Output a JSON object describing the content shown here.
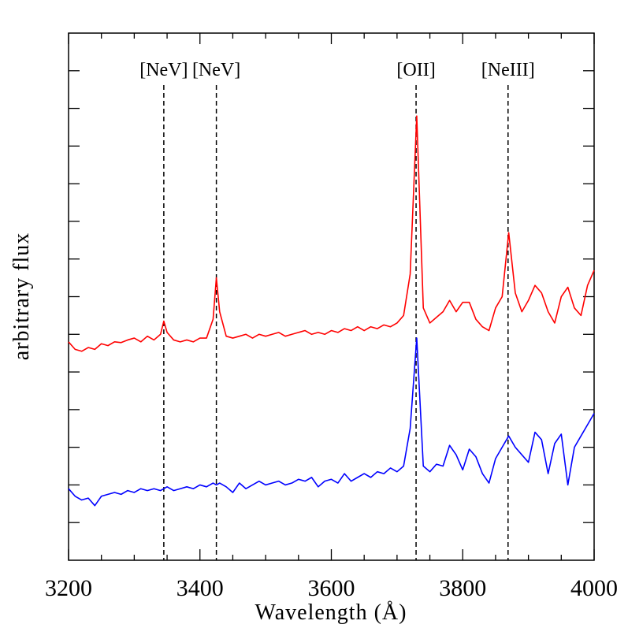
{
  "chart_data": {
    "type": "line",
    "xlabel": "Wavelength (Å)",
    "ylabel": "arbitrary flux",
    "xlim": [
      3200,
      4000
    ],
    "xticks": [
      3200,
      3400,
      3600,
      3800,
      4000
    ],
    "xminorticks": [
      3250,
      3300,
      3350,
      3450,
      3500,
      3550,
      3650,
      3700,
      3750,
      3850,
      3900,
      3950
    ],
    "ylim": [
      0,
      14
    ],
    "yticks": [
      1,
      2,
      3,
      4,
      5,
      6,
      7,
      8,
      9,
      10,
      11,
      12,
      13
    ],
    "ytick_labels": false,
    "x": [
      3200,
      3210,
      3220,
      3230,
      3240,
      3250,
      3260,
      3270,
      3280,
      3290,
      3300,
      3310,
      3320,
      3330,
      3340,
      3345,
      3350,
      3360,
      3370,
      3380,
      3390,
      3400,
      3410,
      3420,
      3425,
      3430,
      3440,
      3450,
      3460,
      3470,
      3480,
      3490,
      3500,
      3510,
      3520,
      3530,
      3540,
      3550,
      3560,
      3570,
      3580,
      3590,
      3600,
      3610,
      3620,
      3630,
      3640,
      3650,
      3660,
      3670,
      3680,
      3690,
      3700,
      3710,
      3720,
      3730,
      3740,
      3750,
      3760,
      3770,
      3780,
      3790,
      3800,
      3810,
      3820,
      3830,
      3840,
      3850,
      3860,
      3870,
      3880,
      3890,
      3900,
      3910,
      3920,
      3930,
      3940,
      3950,
      3960,
      3970,
      3980,
      3990,
      4000
    ],
    "series": [
      {
        "color": "#ff0000",
        "values": [
          5.8,
          5.6,
          5.55,
          5.65,
          5.6,
          5.75,
          5.7,
          5.8,
          5.78,
          5.85,
          5.9,
          5.8,
          5.95,
          5.85,
          6.0,
          6.35,
          6.05,
          5.85,
          5.8,
          5.85,
          5.8,
          5.9,
          5.9,
          6.4,
          7.5,
          6.6,
          5.95,
          5.9,
          5.95,
          6.0,
          5.9,
          6.0,
          5.95,
          6.0,
          6.05,
          5.95,
          6.0,
          6.05,
          6.1,
          6.0,
          6.05,
          6.0,
          6.1,
          6.05,
          6.15,
          6.1,
          6.2,
          6.1,
          6.2,
          6.15,
          6.25,
          6.2,
          6.3,
          6.5,
          7.6,
          11.8,
          6.7,
          6.3,
          6.45,
          6.6,
          6.9,
          6.6,
          6.85,
          6.85,
          6.4,
          6.2,
          6.1,
          6.7,
          7.0,
          8.7,
          7.1,
          6.6,
          6.9,
          7.3,
          7.1,
          6.6,
          6.3,
          7.0,
          7.25,
          6.7,
          6.5,
          7.3,
          7.7
        ]
      },
      {
        "color": "#0000ff",
        "values": [
          1.9,
          1.7,
          1.6,
          1.65,
          1.45,
          1.7,
          1.75,
          1.8,
          1.75,
          1.85,
          1.8,
          1.9,
          1.85,
          1.9,
          1.85,
          1.9,
          1.95,
          1.85,
          1.9,
          1.95,
          1.9,
          2.0,
          1.95,
          2.05,
          2.0,
          2.05,
          1.95,
          1.8,
          2.05,
          1.9,
          2.0,
          2.1,
          2.0,
          2.05,
          2.1,
          2.0,
          2.05,
          2.15,
          2.1,
          2.2,
          1.95,
          2.1,
          2.15,
          2.05,
          2.3,
          2.1,
          2.2,
          2.3,
          2.2,
          2.35,
          2.3,
          2.45,
          2.35,
          2.5,
          3.5,
          5.9,
          2.5,
          2.35,
          2.55,
          2.5,
          3.05,
          2.8,
          2.4,
          2.95,
          2.75,
          2.3,
          2.05,
          2.7,
          3.0,
          3.3,
          3.0,
          2.8,
          2.6,
          3.4,
          3.2,
          2.3,
          3.1,
          3.35,
          2.0,
          3.0,
          3.3,
          3.6,
          3.9
        ]
      }
    ],
    "annotations": [
      {
        "x": 3345,
        "label": "[NeV]"
      },
      {
        "x": 3425,
        "label": "[NeV]"
      },
      {
        "x": 3729,
        "label": "[OII]"
      },
      {
        "x": 3869,
        "label": "[NeIII]"
      }
    ]
  }
}
